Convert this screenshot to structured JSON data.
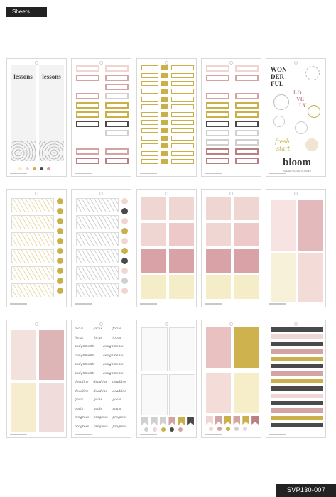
{
  "header": {
    "tag_label": "Sheets"
  },
  "footer": {
    "sku": "SVP130-007"
  },
  "sheet1": {
    "title_left": "lessons",
    "title_right": "lessons"
  },
  "sheet5": {
    "word1": "WON",
    "word2": "DER",
    "word3": "FUL",
    "word4": "LO",
    "word5": "VE",
    "word6": "LY",
    "script1": "fresh",
    "script2": "start",
    "bloom": "bloom",
    "bloom_sub": "WHERE YOU ARE PLANTED"
  },
  "sheet12": {
    "rows": [
      [
        "focus",
        "focus",
        "focus"
      ],
      [
        "focus",
        "focus",
        "focus"
      ],
      [
        "assignments",
        "assignments"
      ],
      [
        "assignments",
        "assignments"
      ],
      [
        "assignments",
        "assignments"
      ],
      [
        "assignments",
        "assignments"
      ],
      [
        "deadline",
        "deadline",
        "deadline"
      ],
      [
        "deadline",
        "deadline",
        "deadline"
      ],
      [
        "goals",
        "goals",
        "goals"
      ],
      [
        "goals",
        "goals",
        "goals"
      ],
      [
        "progress",
        "progress",
        "progress"
      ],
      [
        "progress",
        "progress",
        "progress"
      ]
    ]
  },
  "colors": {
    "blush": "#f0d6d3",
    "rose": "#d4a3a3",
    "mauve": "#b97f82",
    "gold": "#c9b04a",
    "cream": "#f5ecc8",
    "charcoal": "#4a4a4a",
    "grey": "#d0d0d0"
  }
}
